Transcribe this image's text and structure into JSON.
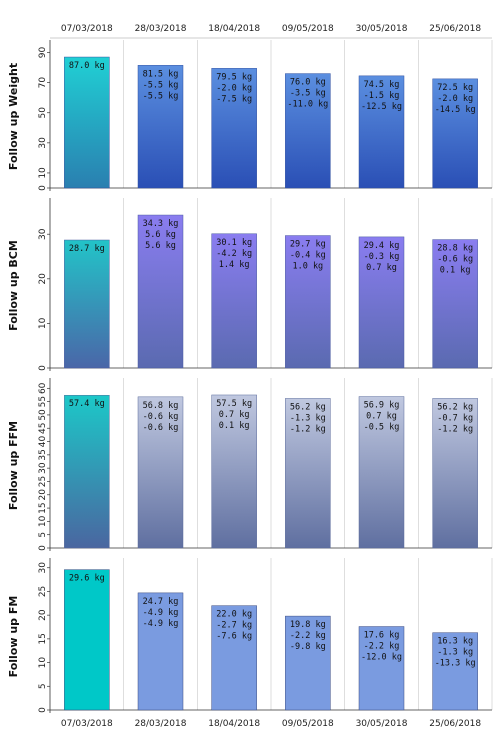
{
  "dates": [
    "07/03/2018",
    "28/03/2018",
    "18/04/2018",
    "09/05/2018",
    "30/05/2018",
    "25/06/2018"
  ],
  "colors": {
    "first_bar": "#17c3c8",
    "weight_top": "#5b8fe0",
    "weight_bottom": "#2a4fb5",
    "bcm_top": "#8a7df0",
    "bcm_bottom": "#5a6ab0",
    "ffm_top": "#c0c8e0",
    "ffm_bottom": "#5f6fa0",
    "fm_bar": "#7a9be0",
    "fm_first": "#00c8c8"
  },
  "chart_data": [
    {
      "type": "bar",
      "ylabel": "Follow up Weight",
      "categories": [
        "07/03/2018",
        "28/03/2018",
        "18/04/2018",
        "09/05/2018",
        "30/05/2018",
        "25/06/2018"
      ],
      "values": [
        87.0,
        81.5,
        79.5,
        76.0,
        74.5,
        72.5
      ],
      "ylim": [
        0,
        95
      ],
      "yticks": [
        0,
        10,
        30,
        50,
        70,
        90
      ],
      "labels": [
        [
          "87.0 kg"
        ],
        [
          "81.5 kg",
          "-5.5 kg",
          "-5.5 kg"
        ],
        [
          "79.5 kg",
          "-2.0 kg",
          "-7.5 kg"
        ],
        [
          "76.0 kg",
          "-3.5 kg",
          "-11.0 kg"
        ],
        [
          "74.5 kg",
          "-1.5 kg",
          "-12.5 kg"
        ],
        [
          "72.5 kg",
          "-2.0 kg",
          "-14.5 kg"
        ]
      ]
    },
    {
      "type": "bar",
      "ylabel": "Follow up BCM",
      "categories": [
        "07/03/2018",
        "28/03/2018",
        "18/04/2018",
        "09/05/2018",
        "30/05/2018",
        "25/06/2018"
      ],
      "values": [
        28.7,
        34.3,
        30.1,
        29.7,
        29.4,
        28.8
      ],
      "ylim": [
        0,
        37
      ],
      "yticks": [
        0,
        10,
        20,
        30
      ],
      "labels": [
        [
          "28.7 kg"
        ],
        [
          "34.3 kg",
          "5.6 kg",
          "5.6 kg"
        ],
        [
          "30.1 kg",
          "-4.2 kg",
          "1.4 kg"
        ],
        [
          "29.7 kg",
          "-0.4 kg",
          "1.0 kg"
        ],
        [
          "29.4 kg",
          "-0.3 kg",
          "0.7 kg"
        ],
        [
          "28.8 kg",
          "-0.6 kg",
          "0.1 kg"
        ]
      ]
    },
    {
      "type": "bar",
      "ylabel": "Follow up FFM",
      "categories": [
        "07/03/2018",
        "28/03/2018",
        "18/04/2018",
        "09/05/2018",
        "30/05/2018",
        "25/06/2018"
      ],
      "values": [
        57.4,
        56.8,
        57.5,
        56.2,
        56.9,
        56.2
      ],
      "ylim": [
        0,
        62
      ],
      "yticks": [
        0,
        5,
        10,
        15,
        20,
        25,
        30,
        35,
        40,
        45,
        50,
        55,
        60
      ],
      "labels": [
        [
          "57.4 kg"
        ],
        [
          "56.8 kg",
          "-0.6 kg",
          "-0.6 kg"
        ],
        [
          "57.5 kg",
          "0.7 kg",
          "0.1 kg"
        ],
        [
          "56.2 kg",
          "-1.3 kg",
          "-1.2 kg"
        ],
        [
          "56.9 kg",
          "0.7 kg",
          "-0.5 kg"
        ],
        [
          "56.2 kg",
          "-0.7 kg",
          "-1.2 kg"
        ]
      ]
    },
    {
      "type": "bar",
      "ylabel": "Follow up FM",
      "categories": [
        "07/03/2018",
        "28/03/2018",
        "18/04/2018",
        "09/05/2018",
        "30/05/2018",
        "25/06/2018"
      ],
      "values": [
        29.6,
        24.7,
        22.0,
        19.8,
        17.6,
        16.3
      ],
      "ylim": [
        0,
        31
      ],
      "yticks": [
        0,
        5,
        10,
        15,
        20,
        25,
        30
      ],
      "labels": [
        [
          "29.6 kg"
        ],
        [
          "24.7 kg",
          "-4.9 kg",
          "-4.9 kg"
        ],
        [
          "22.0 kg",
          "-2.7 kg",
          "-7.6 kg"
        ],
        [
          "19.8 kg",
          "-2.2 kg",
          "-9.8 kg"
        ],
        [
          "17.6 kg",
          "-2.2 kg",
          "-12.0 kg"
        ],
        [
          "16.3 kg",
          "-1.3 kg",
          "-13.3 kg"
        ]
      ]
    }
  ]
}
